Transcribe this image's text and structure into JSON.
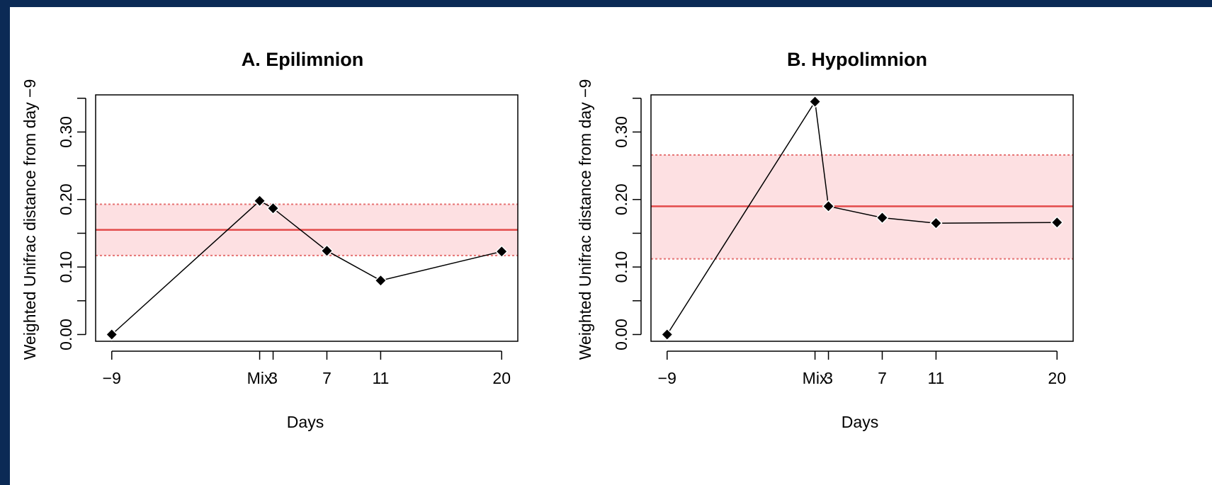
{
  "colors": {
    "background_frame": "#0b2a55",
    "band_fill": "#fde0e2",
    "band_edge": "#e57373",
    "mean_line": "#e34a4a",
    "series": "#000000"
  },
  "chart_data": [
    {
      "type": "line",
      "title": "A. Epilimnion",
      "xlabel": "Days",
      "ylabel": "Weighted Unifrac distance from day −9",
      "x_ticks": [
        "−9",
        "Mix",
        "3",
        "7",
        "11",
        "20"
      ],
      "x_positions": [
        -9,
        2,
        3,
        7,
        11,
        20
      ],
      "xlim": [
        -10.2,
        21.2
      ],
      "ylim": [
        -0.01,
        0.355
      ],
      "y_ticks": [
        0.0,
        0.05,
        0.1,
        0.15,
        0.2,
        0.25,
        0.3,
        0.35
      ],
      "y_tick_labels": [
        "0.00",
        "",
        "0.10",
        "",
        "0.20",
        "",
        "0.30",
        ""
      ],
      "series": [
        {
          "x": [
            -9,
            2,
            3,
            7,
            11,
            20
          ],
          "values": [
            0.0,
            0.198,
            0.187,
            0.124,
            0.08,
            0.123
          ],
          "marker": "diamond"
        }
      ],
      "reference": {
        "mean": 0.155,
        "band": [
          0.117,
          0.193
        ]
      },
      "grid": false
    },
    {
      "type": "line",
      "title": "B. Hypolimnion",
      "xlabel": "Days",
      "ylabel": "Weighted Unifrac distance from day −9",
      "x_ticks": [
        "−9",
        "Mix",
        "3",
        "7",
        "11",
        "20"
      ],
      "x_positions": [
        -9,
        2,
        3,
        7,
        11,
        20
      ],
      "xlim": [
        -10.2,
        21.2
      ],
      "ylim": [
        -0.01,
        0.355
      ],
      "y_ticks": [
        0.0,
        0.05,
        0.1,
        0.15,
        0.2,
        0.25,
        0.3,
        0.35
      ],
      "y_tick_labels": [
        "0.00",
        "",
        "0.10",
        "",
        "0.20",
        "",
        "0.30",
        ""
      ],
      "series": [
        {
          "x": [
            -9,
            2,
            3,
            7,
            11,
            20
          ],
          "values": [
            0.0,
            0.345,
            0.19,
            0.173,
            0.165,
            0.166
          ],
          "marker": "diamond"
        }
      ],
      "reference": {
        "mean": 0.19,
        "band": [
          0.112,
          0.266
        ]
      },
      "grid": false
    }
  ]
}
